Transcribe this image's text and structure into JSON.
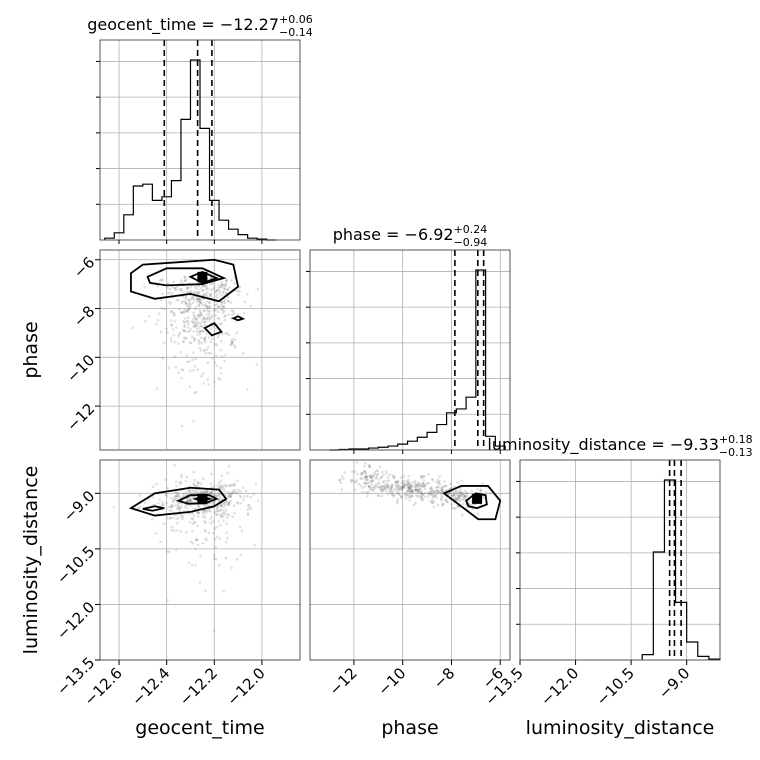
{
  "chart_data": {
    "type": "corner",
    "parameters": [
      {
        "name": "geocent_time",
        "xlabel": "geocent_time",
        "ylabel": "",
        "title": {
          "main": "geocent_time = −12.27",
          "sup": "+0.06",
          "sub": "−0.14"
        },
        "range": [
          -12.68,
          -11.84
        ],
        "ticks": [
          {
            "value": -12.6,
            "label": "−12.6"
          },
          {
            "value": -12.4,
            "label": "−12.4"
          },
          {
            "value": -12.2,
            "label": "−12.2"
          },
          {
            "value": -12.0,
            "label": "−12.0"
          }
        ],
        "quantiles": [
          -12.41,
          -12.27,
          -12.21
        ],
        "histogram": {
          "bin_edges": [
            -12.66,
            -12.62,
            -12.58,
            -12.54,
            -12.5,
            -12.46,
            -12.42,
            -12.38,
            -12.34,
            -12.3,
            -12.26,
            -12.22,
            -12.18,
            -12.14,
            -12.1,
            -12.06,
            -12.02,
            -11.98,
            -11.94
          ],
          "counts": [
            1,
            4,
            14,
            30,
            31,
            22,
            24,
            33,
            67,
            100,
            62,
            22,
            11,
            6,
            3,
            1,
            0.5,
            0
          ]
        }
      },
      {
        "name": "phase",
        "xlabel": "phase",
        "ylabel": "phase",
        "title": {
          "main": "phase = −6.92",
          "sup": "+0.24",
          "sub": "−0.94"
        },
        "range": [
          -13.8,
          -5.6
        ],
        "ticks": [
          {
            "value": -12,
            "label": "−12"
          },
          {
            "value": -10,
            "label": "−10"
          },
          {
            "value": -8,
            "label": "−8"
          },
          {
            "value": -6,
            "label": "−6"
          }
        ],
        "quantiles": [
          -7.86,
          -6.92,
          -6.68
        ],
        "histogram": {
          "bin_edges": [
            -13.0,
            -12.6,
            -12.2,
            -11.8,
            -11.4,
            -11.0,
            -10.6,
            -10.2,
            -9.8,
            -9.4,
            -9.0,
            -8.6,
            -8.2,
            -7.8,
            -7.4,
            -7.0,
            -6.6,
            -6.2,
            -5.8
          ],
          "counts": [
            0,
            0.3,
            0.5,
            0.5,
            1,
            1.4,
            2,
            3,
            4.5,
            6.5,
            9,
            13,
            19,
            21,
            27,
            92,
            7,
            2
          ]
        }
      },
      {
        "name": "luminosity_distance",
        "xlabel": "luminosity_distance",
        "ylabel": "luminosity_distance",
        "title": {
          "main": "luminosity_distance = −9.33",
          "sup": "+0.18",
          "sub": "−0.13"
        },
        "range": [
          -13.5,
          -8.1
        ],
        "ticks": [
          {
            "value": -13.5,
            "label": "−13.5"
          },
          {
            "value": -12.0,
            "label": "−12.0"
          },
          {
            "value": -10.5,
            "label": "−10.5"
          },
          {
            "value": -9.0,
            "label": "−9.0"
          }
        ],
        "quantiles": [
          -9.46,
          -9.33,
          -9.15
        ],
        "histogram": {
          "bin_edges": [
            -10.2,
            -9.9,
            -9.6,
            -9.3,
            -9.0,
            -8.7,
            -8.4,
            -8.1
          ],
          "counts": [
            3,
            60,
            100,
            32,
            10,
            2,
            0.5
          ]
        }
      }
    ],
    "pairs": [
      {
        "x": "geocent_time",
        "y": "phase",
        "peak": [
          -12.25,
          -6.7
        ],
        "contours": {
          "outer": [
            [
              -12.55,
              -6.55
            ],
            [
              -12.5,
              -6.2
            ],
            [
              -12.35,
              -6.1
            ],
            [
              -12.2,
              -6.0
            ],
            [
              -12.12,
              -6.2
            ],
            [
              -12.1,
              -7.1
            ],
            [
              -12.18,
              -7.7
            ],
            [
              -12.3,
              -7.4
            ],
            [
              -12.45,
              -7.6
            ],
            [
              -12.55,
              -7.3
            ]
          ],
          "inner": [
            [
              -12.48,
              -6.7
            ],
            [
              -12.4,
              -6.35
            ],
            [
              -12.25,
              -6.35
            ],
            [
              -12.16,
              -6.75
            ],
            [
              -12.25,
              -7.0
            ],
            [
              -12.4,
              -7.05
            ],
            [
              -12.47,
              -6.95
            ]
          ],
          "core": [
            [
              -12.3,
              -6.7
            ],
            [
              -12.25,
              -6.5
            ],
            [
              -12.19,
              -6.75
            ],
            [
              -12.25,
              -6.95
            ]
          ],
          "islands": [
            [
              [
                -12.24,
                -8.8
              ],
              [
                -12.2,
                -8.6
              ],
              [
                -12.17,
                -8.95
              ],
              [
                -12.21,
                -9.1
              ]
            ],
            [
              [
                -12.12,
                -8.4
              ],
              [
                -12.1,
                -8.32
              ],
              [
                -12.08,
                -8.42
              ],
              [
                -12.1,
                -8.48
              ]
            ]
          ]
        }
      },
      {
        "x": "geocent_time",
        "y": "luminosity_distance",
        "peak": [
          -12.25,
          -9.15
        ],
        "contours": {
          "outer": [
            [
              -12.55,
              -9.4
            ],
            [
              -12.45,
              -9.0
            ],
            [
              -12.3,
              -8.85
            ],
            [
              -12.18,
              -8.9
            ],
            [
              -12.15,
              -9.15
            ],
            [
              -12.2,
              -9.35
            ],
            [
              -12.3,
              -9.5
            ],
            [
              -12.45,
              -9.6
            ]
          ],
          "inner": [
            [
              -12.35,
              -9.2
            ],
            [
              -12.3,
              -9.05
            ],
            [
              -12.22,
              -9.05
            ],
            [
              -12.19,
              -9.15
            ],
            [
              -12.24,
              -9.27
            ],
            [
              -12.31,
              -9.28
            ]
          ],
          "core": [
            [
              -12.28,
              -9.15
            ],
            [
              -12.25,
              -9.09
            ],
            [
              -12.22,
              -9.15
            ],
            [
              -12.25,
              -9.21
            ]
          ],
          "islands": [
            [
              [
                -12.5,
                -9.42
              ],
              [
                -12.45,
                -9.35
              ],
              [
                -12.41,
                -9.4
              ],
              [
                -12.46,
                -9.47
              ]
            ]
          ]
        }
      },
      {
        "x": "phase",
        "y": "luminosity_distance",
        "peak": [
          -6.95,
          -9.15
        ],
        "contours": {
          "outer": [
            [
              -8.3,
              -9.0
            ],
            [
              -7.6,
              -8.8
            ],
            [
              -6.5,
              -8.8
            ],
            [
              -6.0,
              -9.2
            ],
            [
              -6.2,
              -9.7
            ],
            [
              -6.9,
              -9.7
            ],
            [
              -7.6,
              -9.35
            ]
          ],
          "inner": [
            [
              -7.4,
              -9.2
            ],
            [
              -7.0,
              -9.0
            ],
            [
              -6.6,
              -9.05
            ],
            [
              -6.55,
              -9.3
            ],
            [
              -6.95,
              -9.4
            ],
            [
              -7.3,
              -9.35
            ]
          ],
          "core": [
            [
              -7.1,
              -9.15
            ],
            [
              -6.95,
              -9.05
            ],
            [
              -6.8,
              -9.15
            ],
            [
              -6.95,
              -9.25
            ]
          ],
          "islands": []
        }
      }
    ]
  }
}
